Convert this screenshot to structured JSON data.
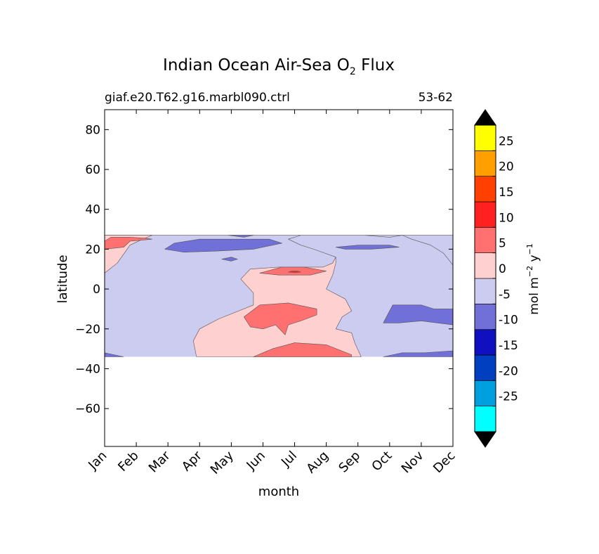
{
  "chart_data": {
    "type": "heatmap",
    "title_main": "Indian Ocean Air-Sea O",
    "title_sub": "2",
    "title_tail": " Flux",
    "case_label": "giaf.e20.T62.g16.marbl090.ctrl",
    "years_label": "53-62",
    "xlabel": "month",
    "ylabel": "latitude",
    "x_ticks": [
      "Jan",
      "Feb",
      "Mar",
      "Apr",
      "May",
      "Jun",
      "Jul",
      "Aug",
      "Sep",
      "Oct",
      "Nov",
      "Dec"
    ],
    "y_ticks": [
      {
        "value": 80,
        "label": "80"
      },
      {
        "value": 60,
        "label": "60"
      },
      {
        "value": 40,
        "label": "40"
      },
      {
        "value": 20,
        "label": "20"
      },
      {
        "value": 0,
        "label": "0"
      },
      {
        "value": -20,
        "label": "−20"
      },
      {
        "value": -40,
        "label": "−40"
      },
      {
        "value": -60,
        "label": "−60"
      }
    ],
    "xlim": [
      0,
      11
    ],
    "ylim": [
      -79,
      90
    ],
    "data_lat_range": [
      -34,
      27
    ],
    "colorbar": {
      "label_main": "mol m",
      "label_exp1": "−2",
      "label_mid": "  y",
      "label_exp2": "−1",
      "levels": [
        -30,
        -25,
        -20,
        -15,
        -10,
        -5,
        0,
        5,
        10,
        15,
        20,
        25,
        30
      ],
      "colors": [
        "#00ffff",
        "#00a0e0",
        "#0040c0",
        "#1010c0",
        "#7070d8",
        "#ccccf0",
        "#ffd0d0",
        "#ff7070",
        "#ff2020",
        "#ff4000",
        "#ffa000",
        "#ffff00"
      ],
      "tick_labels": [
        {
          "value": 25,
          "label": "25"
        },
        {
          "value": 20,
          "label": "20"
        },
        {
          "value": 15,
          "label": "15"
        },
        {
          "value": 10,
          "label": "10"
        },
        {
          "value": 5,
          "label": "5"
        },
        {
          "value": 0,
          "label": "0"
        },
        {
          "value": -5,
          "label": "-5"
        },
        {
          "value": -10,
          "label": "-10"
        },
        {
          "value": -15,
          "label": "-15"
        },
        {
          "value": -20,
          "label": "-20"
        },
        {
          "value": -25,
          "label": "-25"
        }
      ],
      "extend": "both",
      "extend_color": "#000000"
    },
    "regions": [
      {
        "level": "0 to 5",
        "color": "#ffd0d0",
        "points": [
          [
            0,
            27
          ],
          [
            1.2,
            27
          ],
          [
            3,
            27
          ],
          [
            4,
            27
          ],
          [
            5.2,
            27
          ],
          [
            6.5,
            27
          ],
          [
            8.2,
            27
          ],
          [
            9.2,
            27
          ],
          [
            9.8,
            27
          ],
          [
            10.4,
            27
          ],
          [
            10.8,
            27
          ],
          [
            11,
            27
          ],
          [
            11,
            12
          ],
          [
            10.7,
            18
          ],
          [
            10.3,
            22
          ],
          [
            9.7,
            25
          ],
          [
            9.4,
            27
          ],
          [
            9,
            26
          ],
          [
            8.2,
            27
          ],
          [
            7.2,
            27
          ],
          [
            6.2,
            27
          ],
          [
            5.8,
            25
          ],
          [
            6.2,
            22
          ],
          [
            6.6,
            20
          ],
          [
            7.3,
            16
          ],
          [
            7.2,
            13
          ],
          [
            6.9,
            11
          ],
          [
            5.5,
            11
          ],
          [
            4.6,
            10
          ],
          [
            4.3,
            5
          ],
          [
            4.7,
            -2
          ],
          [
            4.7,
            -8
          ],
          [
            3.6,
            -15
          ],
          [
            3,
            -20
          ],
          [
            2.8,
            -26
          ],
          [
            2.9,
            -34
          ],
          [
            8.1,
            -34
          ],
          [
            7.9,
            -27
          ],
          [
            7.8,
            -22
          ],
          [
            7.3,
            -20
          ],
          [
            7.5,
            -14
          ],
          [
            7.8,
            -11
          ],
          [
            7.6,
            -5
          ],
          [
            7,
            0
          ],
          [
            7.2,
            7
          ],
          [
            7.3,
            13
          ],
          [
            7.3,
            16
          ],
          [
            6.6,
            20
          ],
          [
            6.2,
            22
          ],
          [
            5.8,
            25
          ],
          [
            6.2,
            27
          ],
          [
            7.2,
            27
          ],
          [
            8.2,
            27
          ],
          [
            9,
            26
          ],
          [
            9.4,
            27
          ],
          [
            9.7,
            25
          ],
          [
            10.3,
            22
          ],
          [
            10.7,
            18
          ],
          [
            11,
            12
          ],
          [
            11,
            27
          ]
        ]
      },
      {
        "level": "0 to 5",
        "color": "#ffd0d0",
        "points": [
          [
            0,
            27
          ],
          [
            1.5,
            27
          ],
          [
            1.2,
            25
          ],
          [
            0.8,
            22
          ],
          [
            0.4,
            13
          ],
          [
            0,
            8
          ]
        ]
      },
      {
        "level": "5 to 10",
        "color": "#ff7070",
        "points": [
          [
            0,
            24
          ],
          [
            0.2,
            26
          ],
          [
            0.8,
            26
          ],
          [
            1.3,
            25.5
          ],
          [
            1.5,
            25
          ],
          [
            0.8,
            24
          ],
          [
            0.6,
            21
          ],
          [
            0,
            20
          ]
        ]
      },
      {
        "level": "5 to 10",
        "color": "#ff7070",
        "points": [
          [
            4.7,
            -34
          ],
          [
            5.3,
            -30
          ],
          [
            6,
            -27
          ],
          [
            7,
            -28
          ],
          [
            7.8,
            -33
          ],
          [
            7.8,
            -34
          ]
        ]
      },
      {
        "level": "5 to 10",
        "color": "#ff7070",
        "points": [
          [
            4.6,
            -19
          ],
          [
            4.4,
            -14
          ],
          [
            4.9,
            -8
          ],
          [
            5.8,
            -7
          ],
          [
            6.7,
            -10
          ],
          [
            6.7,
            -13
          ],
          [
            6.2,
            -16
          ],
          [
            5.8,
            -18
          ],
          [
            5.7,
            -23
          ],
          [
            5.4,
            -18
          ],
          [
            5,
            -20
          ]
        ]
      },
      {
        "level": "5 to 10",
        "color": "#ff7070",
        "points": [
          [
            4.9,
            8
          ],
          [
            5.6,
            11
          ],
          [
            6.3,
            11
          ],
          [
            7,
            9
          ],
          [
            6.5,
            7
          ],
          [
            5.5,
            7
          ]
        ]
      },
      {
        "level": "10 to 15",
        "color": "#ff2020",
        "points": [
          [
            5.8,
            8.5
          ],
          [
            5.9,
            9
          ],
          [
            6.1,
            9
          ],
          [
            6.2,
            8.5
          ],
          [
            6,
            8.3
          ]
        ]
      },
      {
        "level": "-5 to -10",
        "color": "#7070d8",
        "points": [
          [
            1.9,
            20
          ],
          [
            2.2,
            23
          ],
          [
            3,
            25
          ],
          [
            4,
            25
          ],
          [
            5.2,
            25
          ],
          [
            5.6,
            23
          ],
          [
            4.7,
            20
          ],
          [
            3.5,
            19
          ],
          [
            2.5,
            18.5
          ]
        ]
      },
      {
        "level": "-5 to -10",
        "color": "#7070d8",
        "points": [
          [
            3.9,
            27
          ],
          [
            4.4,
            26
          ],
          [
            4.7,
            27
          ]
        ]
      },
      {
        "level": "-5 to -10",
        "color": "#7070d8",
        "points": [
          [
            3.7,
            15
          ],
          [
            4,
            14
          ],
          [
            4.2,
            15
          ],
          [
            4,
            16
          ]
        ]
      },
      {
        "level": "-5 to -10",
        "color": "#7070d8",
        "points": [
          [
            7.3,
            21
          ],
          [
            8,
            22
          ],
          [
            9,
            22
          ],
          [
            9.3,
            21
          ],
          [
            8.4,
            20
          ],
          [
            7.6,
            20
          ]
        ]
      },
      {
        "level": "-5 to -10",
        "color": "#7070d8",
        "points": [
          [
            8.8,
            -17
          ],
          [
            9.1,
            -8
          ],
          [
            10,
            -8
          ],
          [
            10.4,
            -10
          ],
          [
            11,
            -10
          ],
          [
            11,
            -18
          ],
          [
            10,
            -16
          ],
          [
            9.3,
            -17
          ]
        ]
      },
      {
        "level": "-5 to -10",
        "color": "#7070d8",
        "points": [
          [
            0,
            -34
          ],
          [
            0,
            -32
          ],
          [
            0.6,
            -34
          ]
        ]
      },
      {
        "level": "-5 to -10",
        "color": "#7070d8",
        "points": [
          [
            8.8,
            -34
          ],
          [
            9.4,
            -32
          ],
          [
            10.1,
            -32
          ],
          [
            11,
            -31
          ],
          [
            11,
            -34
          ]
        ]
      }
    ]
  }
}
